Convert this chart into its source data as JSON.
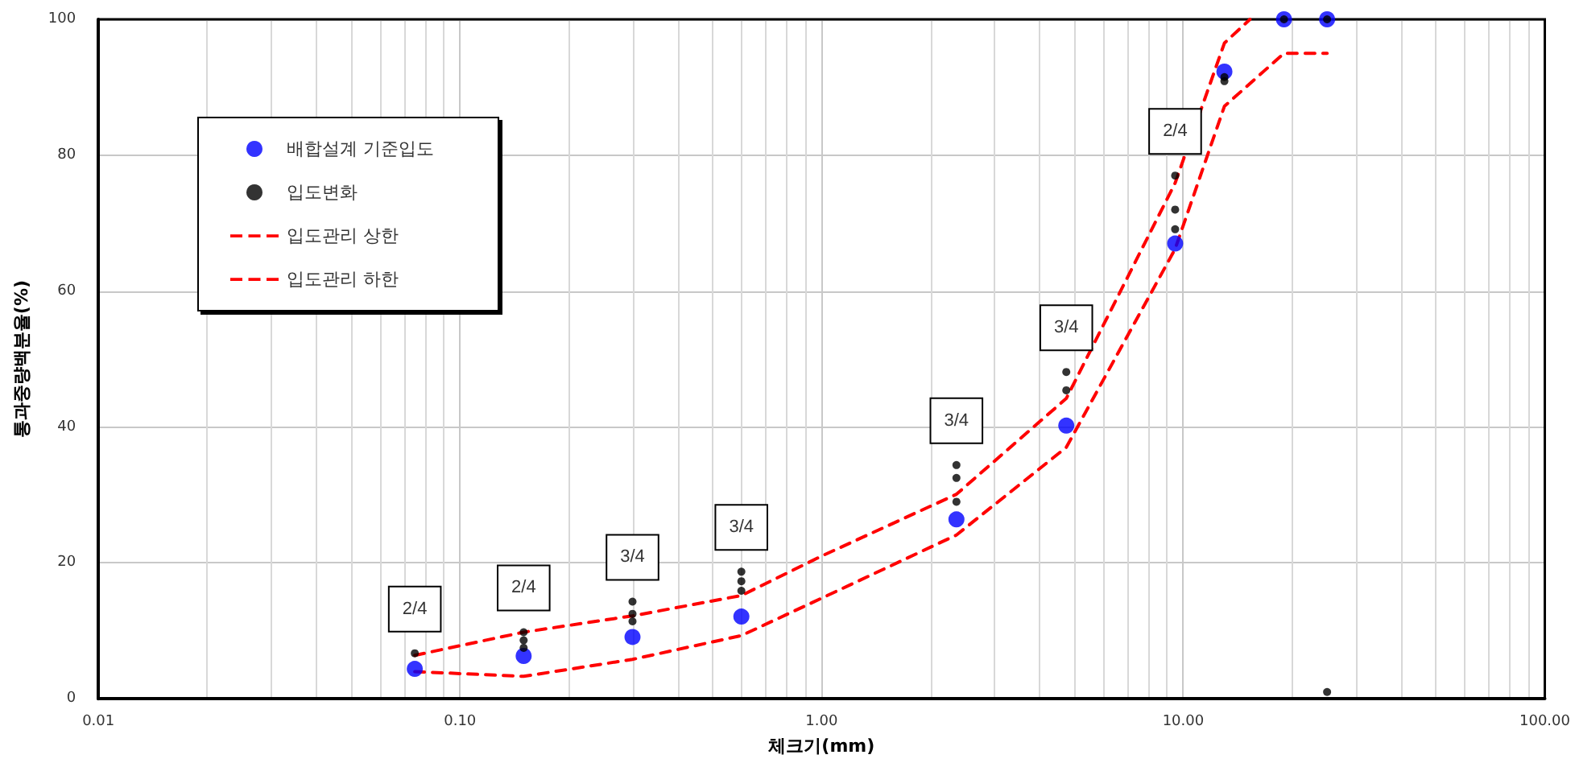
{
  "chart_data": {
    "type": "scatter",
    "xlabel": "체크기(mm)",
    "ylabel": "통과중량백분율(%)",
    "log": "x",
    "xlim": [
      0.01,
      100
    ],
    "ylim": [
      0,
      100
    ],
    "xticks": [
      {
        "value": 0.01,
        "label": "0.01"
      },
      {
        "value": 0.1,
        "label": "0.10"
      },
      {
        "value": 1,
        "label": "1.00"
      },
      {
        "value": 10,
        "label": "10.00"
      },
      {
        "value": 100,
        "label": "100.00"
      }
    ],
    "yticks": [
      0,
      20,
      40,
      60,
      80,
      100
    ],
    "grid": true,
    "legend": "top left",
    "series": [
      {
        "name": "배합설계 기준입도",
        "type": "scatter",
        "marker": "circle",
        "color": "#0000ff",
        "x": [
          0.075,
          0.15,
          0.3,
          0.6,
          2.36,
          4.75,
          9.5,
          13,
          19,
          25
        ],
        "values": [
          4.4,
          6.3,
          9.1,
          12.1,
          26.4,
          40.2,
          67,
          92.3,
          100,
          100
        ]
      },
      {
        "name": "입도변화",
        "type": "scatter",
        "marker": "circle",
        "color": "#000000",
        "x": [
          0.075,
          0.15,
          0.15,
          0.15,
          0.3,
          0.3,
          0.3,
          0.6,
          0.6,
          0.6,
          2.36,
          2.36,
          2.36,
          4.75,
          4.75,
          9.5,
          9.5,
          9.5,
          13,
          13,
          19,
          25,
          25
        ],
        "values": [
          6.7,
          9.8,
          8.6,
          7.5,
          14.3,
          12.5,
          11.4,
          18.7,
          17.3,
          15.9,
          34.4,
          32.5,
          29,
          48.1,
          45.4,
          77,
          72,
          69.1,
          91.5,
          90.9,
          100,
          100,
          1
        ]
      },
      {
        "name": "입도관리 상한",
        "type": "line",
        "marker": "none",
        "line_style": "dashed",
        "color": "#ff0000",
        "x": [
          0.075,
          0.15,
          0.3,
          0.6,
          1,
          2.36,
          4.75,
          9.5,
          13,
          15.3
        ],
        "values": [
          6.4,
          9.8,
          12.2,
          15.2,
          21,
          30.1,
          44.2,
          75.9,
          96.5,
          100
        ]
      },
      {
        "name": "입도관리 하한",
        "type": "line",
        "marker": "none",
        "line_style": "dashed",
        "color": "#ff0000",
        "x": [
          0.075,
          0.15,
          0.3,
          0.6,
          1,
          2.36,
          4.75,
          9.5,
          13,
          19,
          25
        ],
        "values": [
          4,
          3.3,
          5.8,
          9.3,
          14.8,
          24.1,
          37,
          66.2,
          87.2,
          95,
          95
        ]
      }
    ],
    "annotations": [
      {
        "text": "2/4",
        "x": 0.075,
        "y": 6.7
      },
      {
        "text": "2/4",
        "x": 0.15,
        "y": 9.8
      },
      {
        "text": "3/4",
        "x": 0.3,
        "y": 14.3
      },
      {
        "text": "3/4",
        "x": 0.6,
        "y": 18.7
      },
      {
        "text": "3/4",
        "x": 2.36,
        "y": 34.4
      },
      {
        "text": "3/4",
        "x": 4.75,
        "y": 48.1
      },
      {
        "text": "2/4",
        "x": 9.5,
        "y": 77
      }
    ]
  }
}
